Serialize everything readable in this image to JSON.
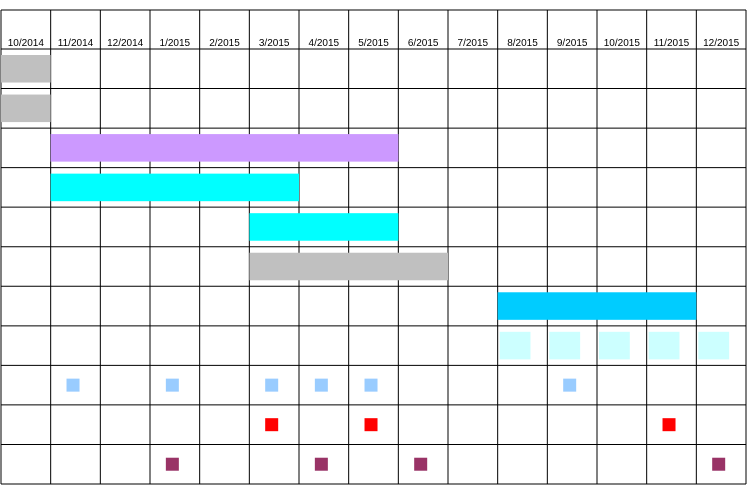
{
  "chart_data": {
    "type": "gantt",
    "title": "",
    "months": [
      "10/2014",
      "11/2014",
      "12/2014",
      "1/2015",
      "2/2015",
      "3/2015",
      "4/2015",
      "5/2015",
      "6/2015",
      "7/2015",
      "8/2015",
      "9/2015",
      "10/2015",
      "11/2015",
      "12/2015"
    ],
    "grid": true,
    "bars": [
      {
        "row": 1,
        "start": "10/2014",
        "end": "11/2014",
        "color": "#c0c0c0"
      },
      {
        "row": 2,
        "start": "10/2014",
        "end": "11/2014",
        "color": "#c0c0c0"
      },
      {
        "row": 3,
        "start": "11/2014",
        "end": "6/2015",
        "color": "#cc99ff"
      },
      {
        "row": 4,
        "start": "11/2014",
        "end": "4/2015",
        "color": "#00ffff"
      },
      {
        "row": 5,
        "start": "3/2015",
        "end": "6/2015",
        "color": "#00ffff"
      },
      {
        "row": 6,
        "start": "3/2015",
        "end": "7/2015",
        "color": "#c0c0c0"
      },
      {
        "row": 7,
        "start": "8/2015",
        "end": "12/2015",
        "color": "#00ccff"
      }
    ],
    "recurring_blocks": {
      "row": 8,
      "color": "#ccffff",
      "months": [
        "8/2015",
        "9/2015",
        "10/2015",
        "11/2015",
        "12/2015"
      ]
    },
    "milestones": [
      {
        "row": 9,
        "month": "11/2014",
        "color": "#99ccff"
      },
      {
        "row": 9,
        "month": "1/2015",
        "color": "#99ccff"
      },
      {
        "row": 9,
        "month": "3/2015",
        "color": "#99ccff"
      },
      {
        "row": 9,
        "month": "4/2015",
        "color": "#99ccff"
      },
      {
        "row": 9,
        "month": "5/2015",
        "color": "#99ccff"
      },
      {
        "row": 9,
        "month": "9/2015",
        "color": "#99ccff"
      },
      {
        "row": 10,
        "month": "3/2015",
        "color": "#ff0000"
      },
      {
        "row": 10,
        "month": "5/2015",
        "color": "#ff0000"
      },
      {
        "row": 10,
        "month": "11/2015",
        "color": "#ff0000"
      },
      {
        "row": 11,
        "month": "1/2015",
        "color": "#993366"
      },
      {
        "row": 11,
        "month": "4/2015",
        "color": "#993366"
      },
      {
        "row": 11,
        "month": "6/2015",
        "color": "#993366"
      },
      {
        "row": 11,
        "month": "12/2015",
        "color": "#993366"
      }
    ]
  }
}
